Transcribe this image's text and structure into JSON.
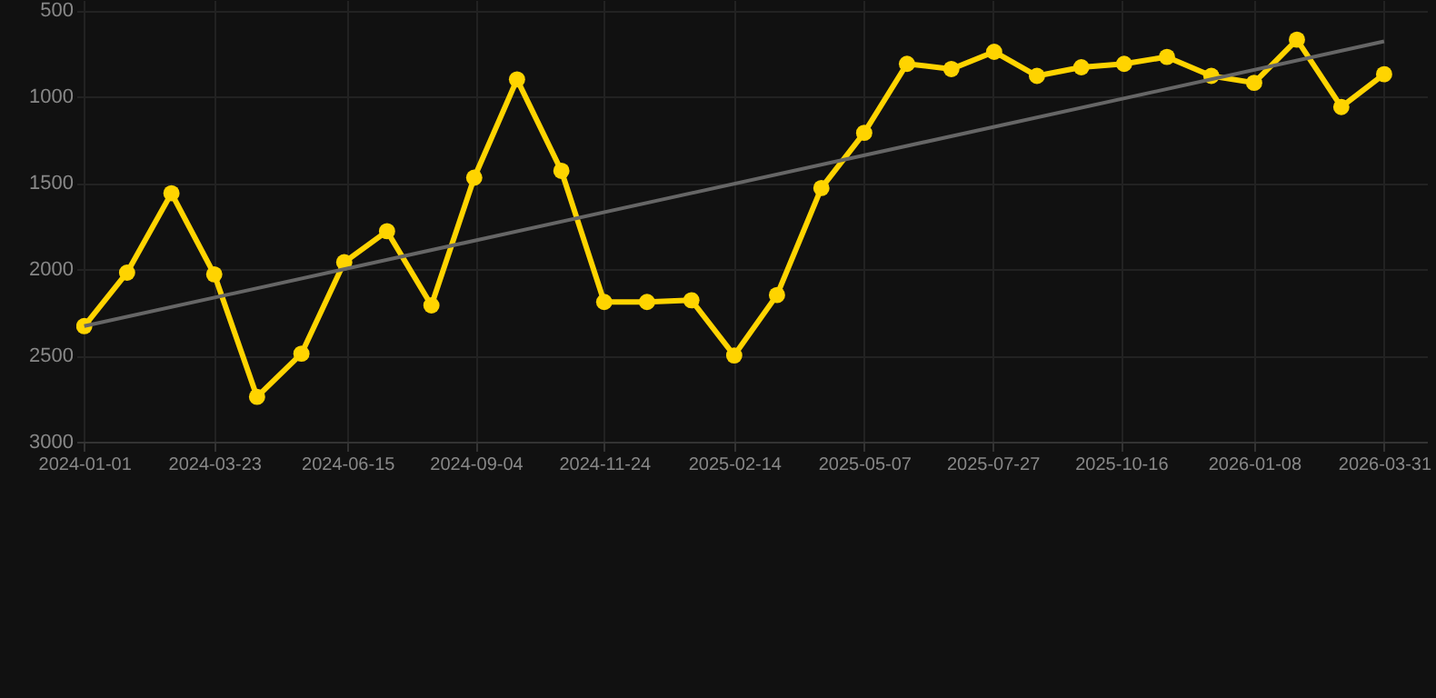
{
  "chart_data": {
    "type": "line",
    "x": [
      "2024-01-01",
      "2024-01-28",
      "2024-02-25",
      "2024-03-23",
      "2024-04-19",
      "2024-05-17",
      "2024-06-13",
      "2024-07-10",
      "2024-08-07",
      "2024-09-03",
      "2024-09-30",
      "2024-10-28",
      "2024-11-24",
      "2024-12-21",
      "2025-01-18",
      "2025-02-14",
      "2025-03-13",
      "2025-04-10",
      "2025-05-07",
      "2025-06-03",
      "2025-07-01",
      "2025-07-28",
      "2025-08-24",
      "2025-09-21",
      "2025-10-18",
      "2025-11-14",
      "2025-12-12",
      "2026-01-08",
      "2026-02-04",
      "2026-03-04",
      "2026-03-31"
    ],
    "series": [
      {
        "color": "#ffd400",
        "marker": "circle",
        "values": [
          2330,
          2020,
          1560,
          2030,
          2740,
          2490,
          1960,
          1780,
          2210,
          1470,
          900,
          1430,
          2190,
          2190,
          2180,
          2500,
          2150,
          1530,
          1210,
          810,
          840,
          740,
          880,
          830,
          810,
          770,
          880,
          920,
          670,
          1060,
          870
        ]
      },
      {
        "type": "line",
        "marker": "none",
        "color": "#666666",
        "x": [
          "2024-01-01",
          "2026-03-31"
        ],
        "values": [
          2330,
          680
        ]
      }
    ],
    "ylim": [
      3000,
      440
    ],
    "yticks": [
      500,
      1000,
      1500,
      2000,
      2500,
      3000
    ],
    "xlim": [
      "2023-12-27",
      "2026-04-27"
    ],
    "xticks": [
      "2024-01-01",
      "2024-03-23",
      "2024-06-15",
      "2024-09-04",
      "2024-11-24",
      "2025-02-14",
      "2025-05-07",
      "2025-07-27",
      "2025-10-16",
      "2026-01-08",
      "2026-03-31"
    ],
    "grid": true
  }
}
